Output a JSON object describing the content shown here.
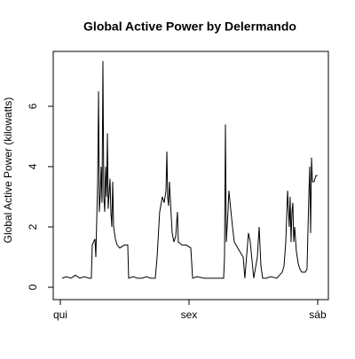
{
  "chart_data": {
    "type": "line",
    "title": "Global Active Power by Delermando",
    "ylabel": "Global Active Power (kilowatts)",
    "x": [
      0.014,
      0.048,
      0.083,
      0.117,
      0.152,
      0.186,
      0.221,
      0.241,
      0.248,
      0.269,
      0.276,
      0.29,
      0.297,
      0.303,
      0.31,
      0.317,
      0.324,
      0.331,
      0.338,
      0.345,
      0.352,
      0.359,
      0.366,
      0.372,
      0.386,
      0.393,
      0.4,
      0.407,
      0.414,
      0.428,
      0.441,
      0.462,
      0.497,
      0.524,
      0.531,
      0.566,
      0.6,
      0.634,
      0.669,
      0.703,
      0.738,
      0.752,
      0.772,
      0.793,
      0.807,
      0.821,
      0.828,
      0.834,
      0.841,
      0.848,
      0.855,
      0.869,
      0.883,
      0.897,
      0.91,
      0.917,
      0.945,
      0.979,
      1.014,
      1.028,
      1.062,
      1.117,
      1.186,
      1.269,
      1.276,
      1.283,
      1.29,
      1.303,
      1.31,
      1.324,
      1.338,
      1.352,
      1.379,
      1.393,
      1.421,
      1.434,
      1.462,
      1.476,
      1.503,
      1.531,
      1.545,
      1.559,
      1.572,
      1.6,
      1.634,
      1.683,
      1.703,
      1.724,
      1.738,
      1.752,
      1.766,
      1.779,
      1.786,
      1.793,
      1.8,
      1.807,
      1.814,
      1.821,
      1.834,
      1.848,
      1.862,
      1.876,
      1.903,
      1.917,
      1.931,
      1.938,
      1.945,
      1.952,
      1.959,
      1.972,
      1.986,
      2.0
    ],
    "series": [
      {
        "name": "Global Active Power",
        "color": "#000000",
        "values": [
          0.3,
          0.35,
          0.3,
          0.4,
          0.3,
          0.35,
          0.3,
          0.3,
          1.4,
          1.6,
          1.0,
          3.5,
          6.5,
          2.5,
          3.0,
          4.0,
          2.8,
          7.5,
          3.0,
          2.5,
          4.0,
          3.0,
          5.1,
          2.6,
          3.6,
          2.5,
          2.0,
          3.5,
          2.0,
          1.6,
          1.4,
          1.3,
          1.4,
          1.4,
          0.3,
          0.35,
          0.3,
          0.3,
          0.35,
          0.3,
          0.3,
          1.0,
          2.5,
          3.0,
          2.8,
          3.2,
          4.5,
          3.0,
          2.7,
          3.5,
          2.9,
          1.8,
          1.5,
          1.7,
          2.5,
          1.5,
          1.4,
          1.4,
          1.3,
          0.3,
          0.35,
          0.3,
          0.3,
          0.3,
          1.0,
          5.4,
          1.5,
          2.5,
          3.2,
          2.6,
          2.0,
          1.5,
          1.3,
          1.2,
          1.0,
          0.3,
          1.8,
          1.5,
          0.3,
          1.0,
          2.0,
          0.7,
          0.3,
          0.3,
          0.35,
          0.3,
          0.4,
          0.5,
          0.7,
          1.5,
          3.2,
          2.0,
          3.0,
          1.5,
          2.5,
          2.8,
          1.5,
          2.0,
          1.2,
          0.8,
          0.6,
          0.5,
          0.5,
          0.6,
          3.0,
          4.0,
          1.8,
          4.3,
          3.5,
          3.5,
          3.7,
          3.7
        ]
      }
    ],
    "xlim": [
      -0.055,
      2.083
    ],
    "ylim": [
      -0.41,
      7.82
    ],
    "xticks": [
      {
        "value": 0,
        "label": "qui"
      },
      {
        "value": 1,
        "label": "sex"
      },
      {
        "value": 2,
        "label": "sáb"
      }
    ],
    "yticks": [
      0,
      2,
      4,
      6
    ]
  }
}
